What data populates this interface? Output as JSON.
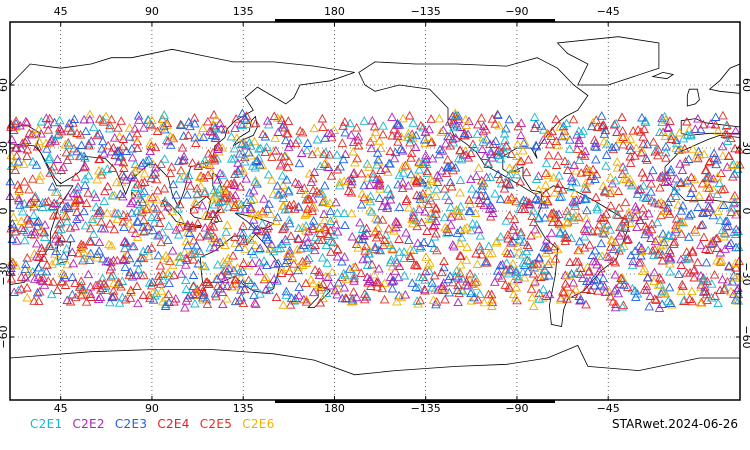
{
  "map": {
    "projection": "cylindrical-equidistant",
    "lon_range_shifted": [
      20,
      380
    ],
    "lat_range": [
      -90,
      90
    ],
    "grid": "dotted",
    "top_lon_ticks": [
      "45",
      "90",
      "135",
      "180",
      "−135",
      "−90",
      "−45"
    ],
    "bottom_lon_ticks": [
      "45",
      "90",
      "135",
      "180",
      "−135",
      "−90",
      "−45"
    ],
    "lat_ticks": [
      "60",
      "30",
      "0",
      "−30",
      "−60"
    ],
    "marker": "triangle-outline",
    "obs_lat_band": [
      -45,
      45
    ],
    "colors": {
      "C2E1": "#17b7d4",
      "C2E2": "#b020b8",
      "C2E3": "#1f5fe0",
      "C2E4": "#e0202c",
      "C2E5": "#e23020",
      "C2E6": "#f0b000"
    }
  },
  "legend": [
    {
      "label": "C2E1",
      "color": "#17b7d4"
    },
    {
      "label": "C2E2",
      "color": "#b020b8"
    },
    {
      "label": "C2E3",
      "color": "#1f5fe0"
    },
    {
      "label": "C2E4",
      "color": "#e0202c"
    },
    {
      "label": "C2E5",
      "color": "#e23020"
    },
    {
      "label": "C2E6",
      "color": "#f0b000"
    }
  ],
  "footer": {
    "label": "STARwet.2024-06-26"
  }
}
